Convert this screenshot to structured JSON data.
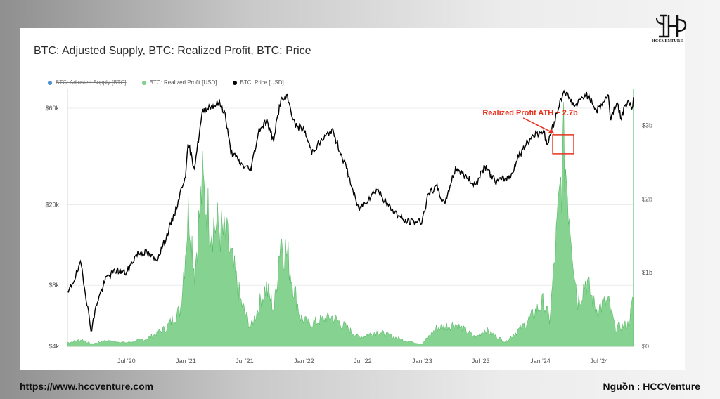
{
  "header": {
    "logo_text": "HCCVENTURE"
  },
  "footer": {
    "url": "https://www.hccventure.com",
    "source": "Nguồn : HCCVenture"
  },
  "colors": {
    "price_line": "#000000",
    "profit_fill": "#7fd18b",
    "profit_stroke": "#4cb45c",
    "annotation": "#e8321e",
    "supply_legend": "#4a90d9",
    "grid": "#ececec"
  },
  "chart_data": {
    "type": "area",
    "title": "BTC: Adjusted Supply, BTC: Realized Profit, BTC: Price",
    "legend": [
      {
        "label": "BTC: Adjusted Supply [BTC]",
        "color": "#4a90d9",
        "disabled": true
      },
      {
        "label": "BTC: Realized Profit [USD]",
        "color": "#7fd18b",
        "disabled": false
      },
      {
        "label": "BTC: Price [USD]",
        "color": "#000000",
        "disabled": false
      }
    ],
    "x_ticks": [
      "Jul '20",
      "Jan '21",
      "Jul '21",
      "Jan '22",
      "Jul '22",
      "Jan '23",
      "Jul '23",
      "Jan '24",
      "Jul '24"
    ],
    "x_tick_dates": [
      "2020-07-01",
      "2021-01-01",
      "2021-07-01",
      "2022-01-01",
      "2022-07-01",
      "2023-01-01",
      "2023-07-01",
      "2024-01-01",
      "2024-07-01"
    ],
    "x_range": [
      "2020-01-01",
      "2024-10-15"
    ],
    "left_axis": {
      "scale": "log",
      "ticks": [
        4000,
        8000,
        20000,
        60000
      ],
      "tick_labels": [
        "$4k",
        "$8k",
        "$20k",
        "$60k"
      ],
      "range": [
        4000,
        75000
      ]
    },
    "right_axis": {
      "scale": "linear",
      "ticks": [
        0,
        1000000000,
        2000000000,
        3000000000
      ],
      "tick_labels": [
        "$0",
        "$1b",
        "$2b",
        "$3b"
      ],
      "range": [
        0,
        3500000000
      ]
    },
    "annotation": {
      "text": "Realized Profit ATH ~ 2.7b",
      "date": "2024-03-14",
      "value": 2700000000
    },
    "series": [
      {
        "name": "BTC: Price [USD]",
        "axis": "left",
        "points": [
          [
            "2020-01-01",
            7200
          ],
          [
            "2020-02-12",
            10300
          ],
          [
            "2020-03-12",
            5000
          ],
          [
            "2020-03-16",
            4900
          ],
          [
            "2020-04-01",
            6600
          ],
          [
            "2020-05-01",
            8800
          ],
          [
            "2020-06-01",
            9500
          ],
          [
            "2020-07-01",
            9200
          ],
          [
            "2020-08-01",
            11400
          ],
          [
            "2020-09-01",
            11700
          ],
          [
            "2020-10-01",
            10600
          ],
          [
            "2020-11-01",
            13800
          ],
          [
            "2020-12-01",
            19000
          ],
          [
            "2021-01-01",
            29000
          ],
          [
            "2021-01-08",
            40000
          ],
          [
            "2021-01-27",
            30500
          ],
          [
            "2021-02-21",
            57500
          ],
          [
            "2021-03-13",
            61000
          ],
          [
            "2021-04-14",
            63500
          ],
          [
            "2021-05-01",
            57000
          ],
          [
            "2021-05-19",
            37000
          ],
          [
            "2021-06-22",
            31500
          ],
          [
            "2021-07-20",
            29800
          ],
          [
            "2021-08-15",
            47000
          ],
          [
            "2021-09-07",
            52000
          ],
          [
            "2021-09-28",
            41500
          ],
          [
            "2021-10-20",
            65000
          ],
          [
            "2021-11-10",
            68000
          ],
          [
            "2021-12-04",
            49500
          ],
          [
            "2022-01-01",
            47000
          ],
          [
            "2022-01-24",
            36500
          ],
          [
            "2022-03-28",
            47000
          ],
          [
            "2022-05-10",
            31000
          ],
          [
            "2022-06-18",
            19000
          ],
          [
            "2022-08-15",
            24000
          ],
          [
            "2022-09-15",
            20000
          ],
          [
            "2022-11-09",
            16500
          ],
          [
            "2022-12-31",
            16600
          ],
          [
            "2023-01-20",
            22500
          ],
          [
            "2023-02-15",
            24500
          ],
          [
            "2023-03-10",
            20000
          ],
          [
            "2023-04-14",
            30500
          ],
          [
            "2023-06-15",
            25000
          ],
          [
            "2023-07-13",
            31000
          ],
          [
            "2023-08-17",
            26000
          ],
          [
            "2023-10-01",
            27500
          ],
          [
            "2023-10-24",
            34500
          ],
          [
            "2023-12-08",
            44000
          ],
          [
            "2024-01-10",
            46500
          ],
          [
            "2024-01-23",
            39500
          ],
          [
            "2024-02-28",
            62000
          ],
          [
            "2024-03-14",
            73500
          ],
          [
            "2024-04-17",
            61000
          ],
          [
            "2024-05-21",
            71000
          ],
          [
            "2024-06-24",
            58500
          ],
          [
            "2024-07-29",
            69500
          ],
          [
            "2024-08-05",
            53500
          ],
          [
            "2024-08-25",
            64500
          ],
          [
            "2024-09-06",
            53500
          ],
          [
            "2024-09-27",
            66000
          ],
          [
            "2024-10-10",
            60000
          ],
          [
            "2024-10-15",
            67000
          ]
        ]
      },
      {
        "name": "BTC: Realized Profit [USD]",
        "axis": "right",
        "points": [
          [
            "2020-01-01",
            50000000
          ],
          [
            "2020-02-15",
            90000000
          ],
          [
            "2020-03-15",
            30000000
          ],
          [
            "2020-05-01",
            80000000
          ],
          [
            "2020-07-01",
            50000000
          ],
          [
            "2020-09-01",
            100000000
          ],
          [
            "2020-11-01",
            250000000
          ],
          [
            "2020-12-15",
            500000000
          ],
          [
            "2021-01-10",
            1900000000
          ],
          [
            "2021-01-28",
            1000000000
          ],
          [
            "2021-02-20",
            2200000000
          ],
          [
            "2021-03-15",
            1700000000
          ],
          [
            "2021-04-15",
            1600000000
          ],
          [
            "2021-05-10",
            1400000000
          ],
          [
            "2021-06-20",
            600000000
          ],
          [
            "2021-07-20",
            250000000
          ],
          [
            "2021-09-05",
            800000000
          ],
          [
            "2021-10-01",
            500000000
          ],
          [
            "2021-10-20",
            1500000000
          ],
          [
            "2021-11-12",
            1200000000
          ],
          [
            "2021-12-20",
            400000000
          ],
          [
            "2022-01-15",
            300000000
          ],
          [
            "2022-03-30",
            400000000
          ],
          [
            "2022-06-20",
            120000000
          ],
          [
            "2022-08-15",
            200000000
          ],
          [
            "2022-11-09",
            80000000
          ],
          [
            "2022-12-31",
            30000000
          ],
          [
            "2023-02-15",
            250000000
          ],
          [
            "2023-04-14",
            300000000
          ],
          [
            "2023-06-15",
            120000000
          ],
          [
            "2023-07-15",
            230000000
          ],
          [
            "2023-09-15",
            60000000
          ],
          [
            "2023-11-15",
            300000000
          ],
          [
            "2024-01-11",
            600000000
          ],
          [
            "2024-01-30",
            350000000
          ],
          [
            "2024-03-14",
            2700000000
          ],
          [
            "2024-04-25",
            600000000
          ],
          [
            "2024-05-21",
            900000000
          ],
          [
            "2024-06-20",
            500000000
          ],
          [
            "2024-07-29",
            600000000
          ],
          [
            "2024-08-20",
            250000000
          ],
          [
            "2024-09-30",
            300000000
          ],
          [
            "2024-10-15",
            650000000
          ]
        ]
      }
    ]
  }
}
